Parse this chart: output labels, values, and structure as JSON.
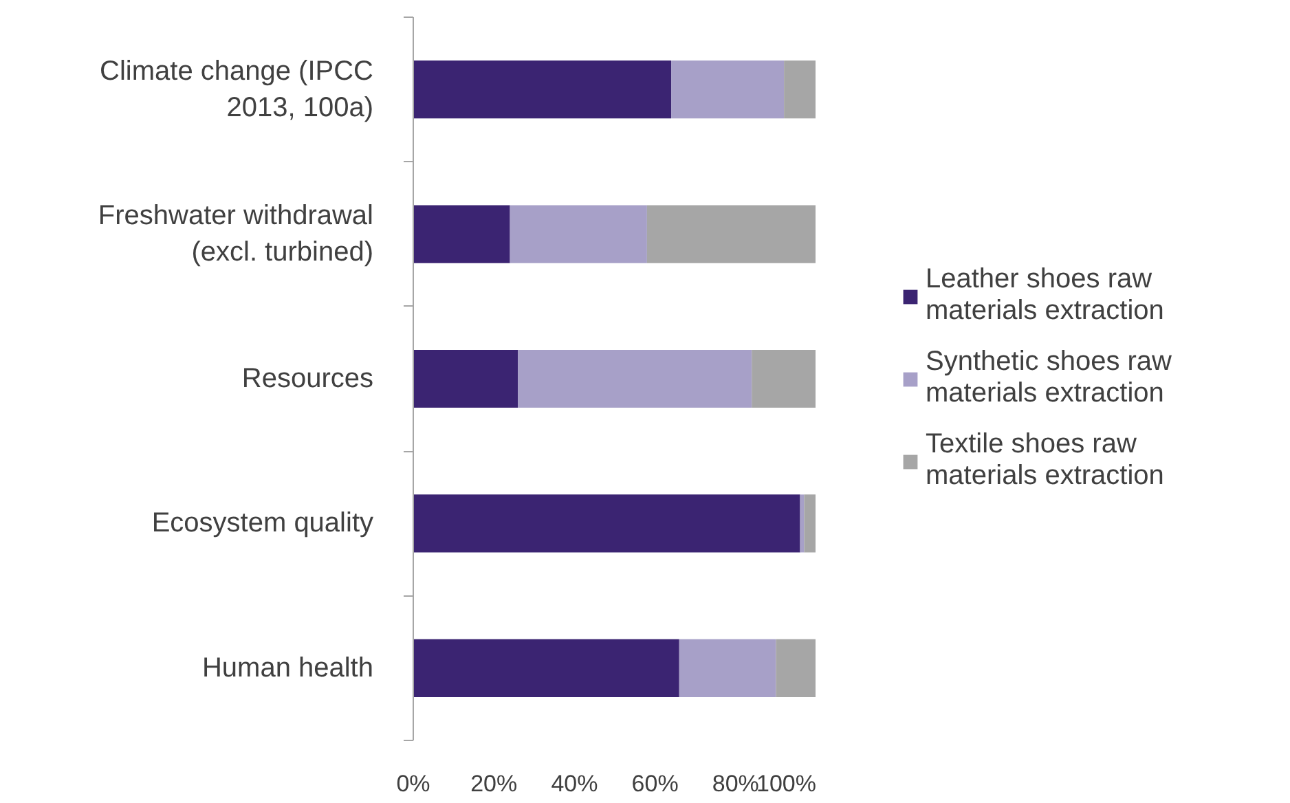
{
  "chart_data": {
    "type": "bar",
    "orientation": "horizontal",
    "stacked": true,
    "categories": [
      "Climate change (IPCC\n2013, 100a)",
      "Freshwater withdrawal\n(excl. turbined)",
      "Resources",
      "Ecosystem quality",
      "Human health"
    ],
    "series": [
      {
        "name": "Leather shoes raw\nmaterials extraction",
        "color": "#3b2472",
        "values": [
          64,
          24,
          26,
          96,
          66
        ]
      },
      {
        "name": "Synthetic shoes raw\nmaterials extraction",
        "color": "#a7a0c8",
        "values": [
          28,
          34,
          58,
          1,
          24
        ]
      },
      {
        "name": "Textile shoes raw\nmaterials extraction",
        "color": "#a6a6a6",
        "values": [
          8,
          42,
          16,
          3,
          10
        ]
      }
    ],
    "xlim": [
      0,
      100
    ],
    "xticks": [
      {
        "value": 0,
        "label": "0%"
      },
      {
        "value": 20,
        "label": "20%"
      },
      {
        "value": 40,
        "label": "40%"
      },
      {
        "value": 60,
        "label": "60%"
      },
      {
        "value": 80,
        "label": "80%"
      },
      {
        "value": 100,
        "label": "100%"
      }
    ],
    "grid": false,
    "legend": "right"
  }
}
